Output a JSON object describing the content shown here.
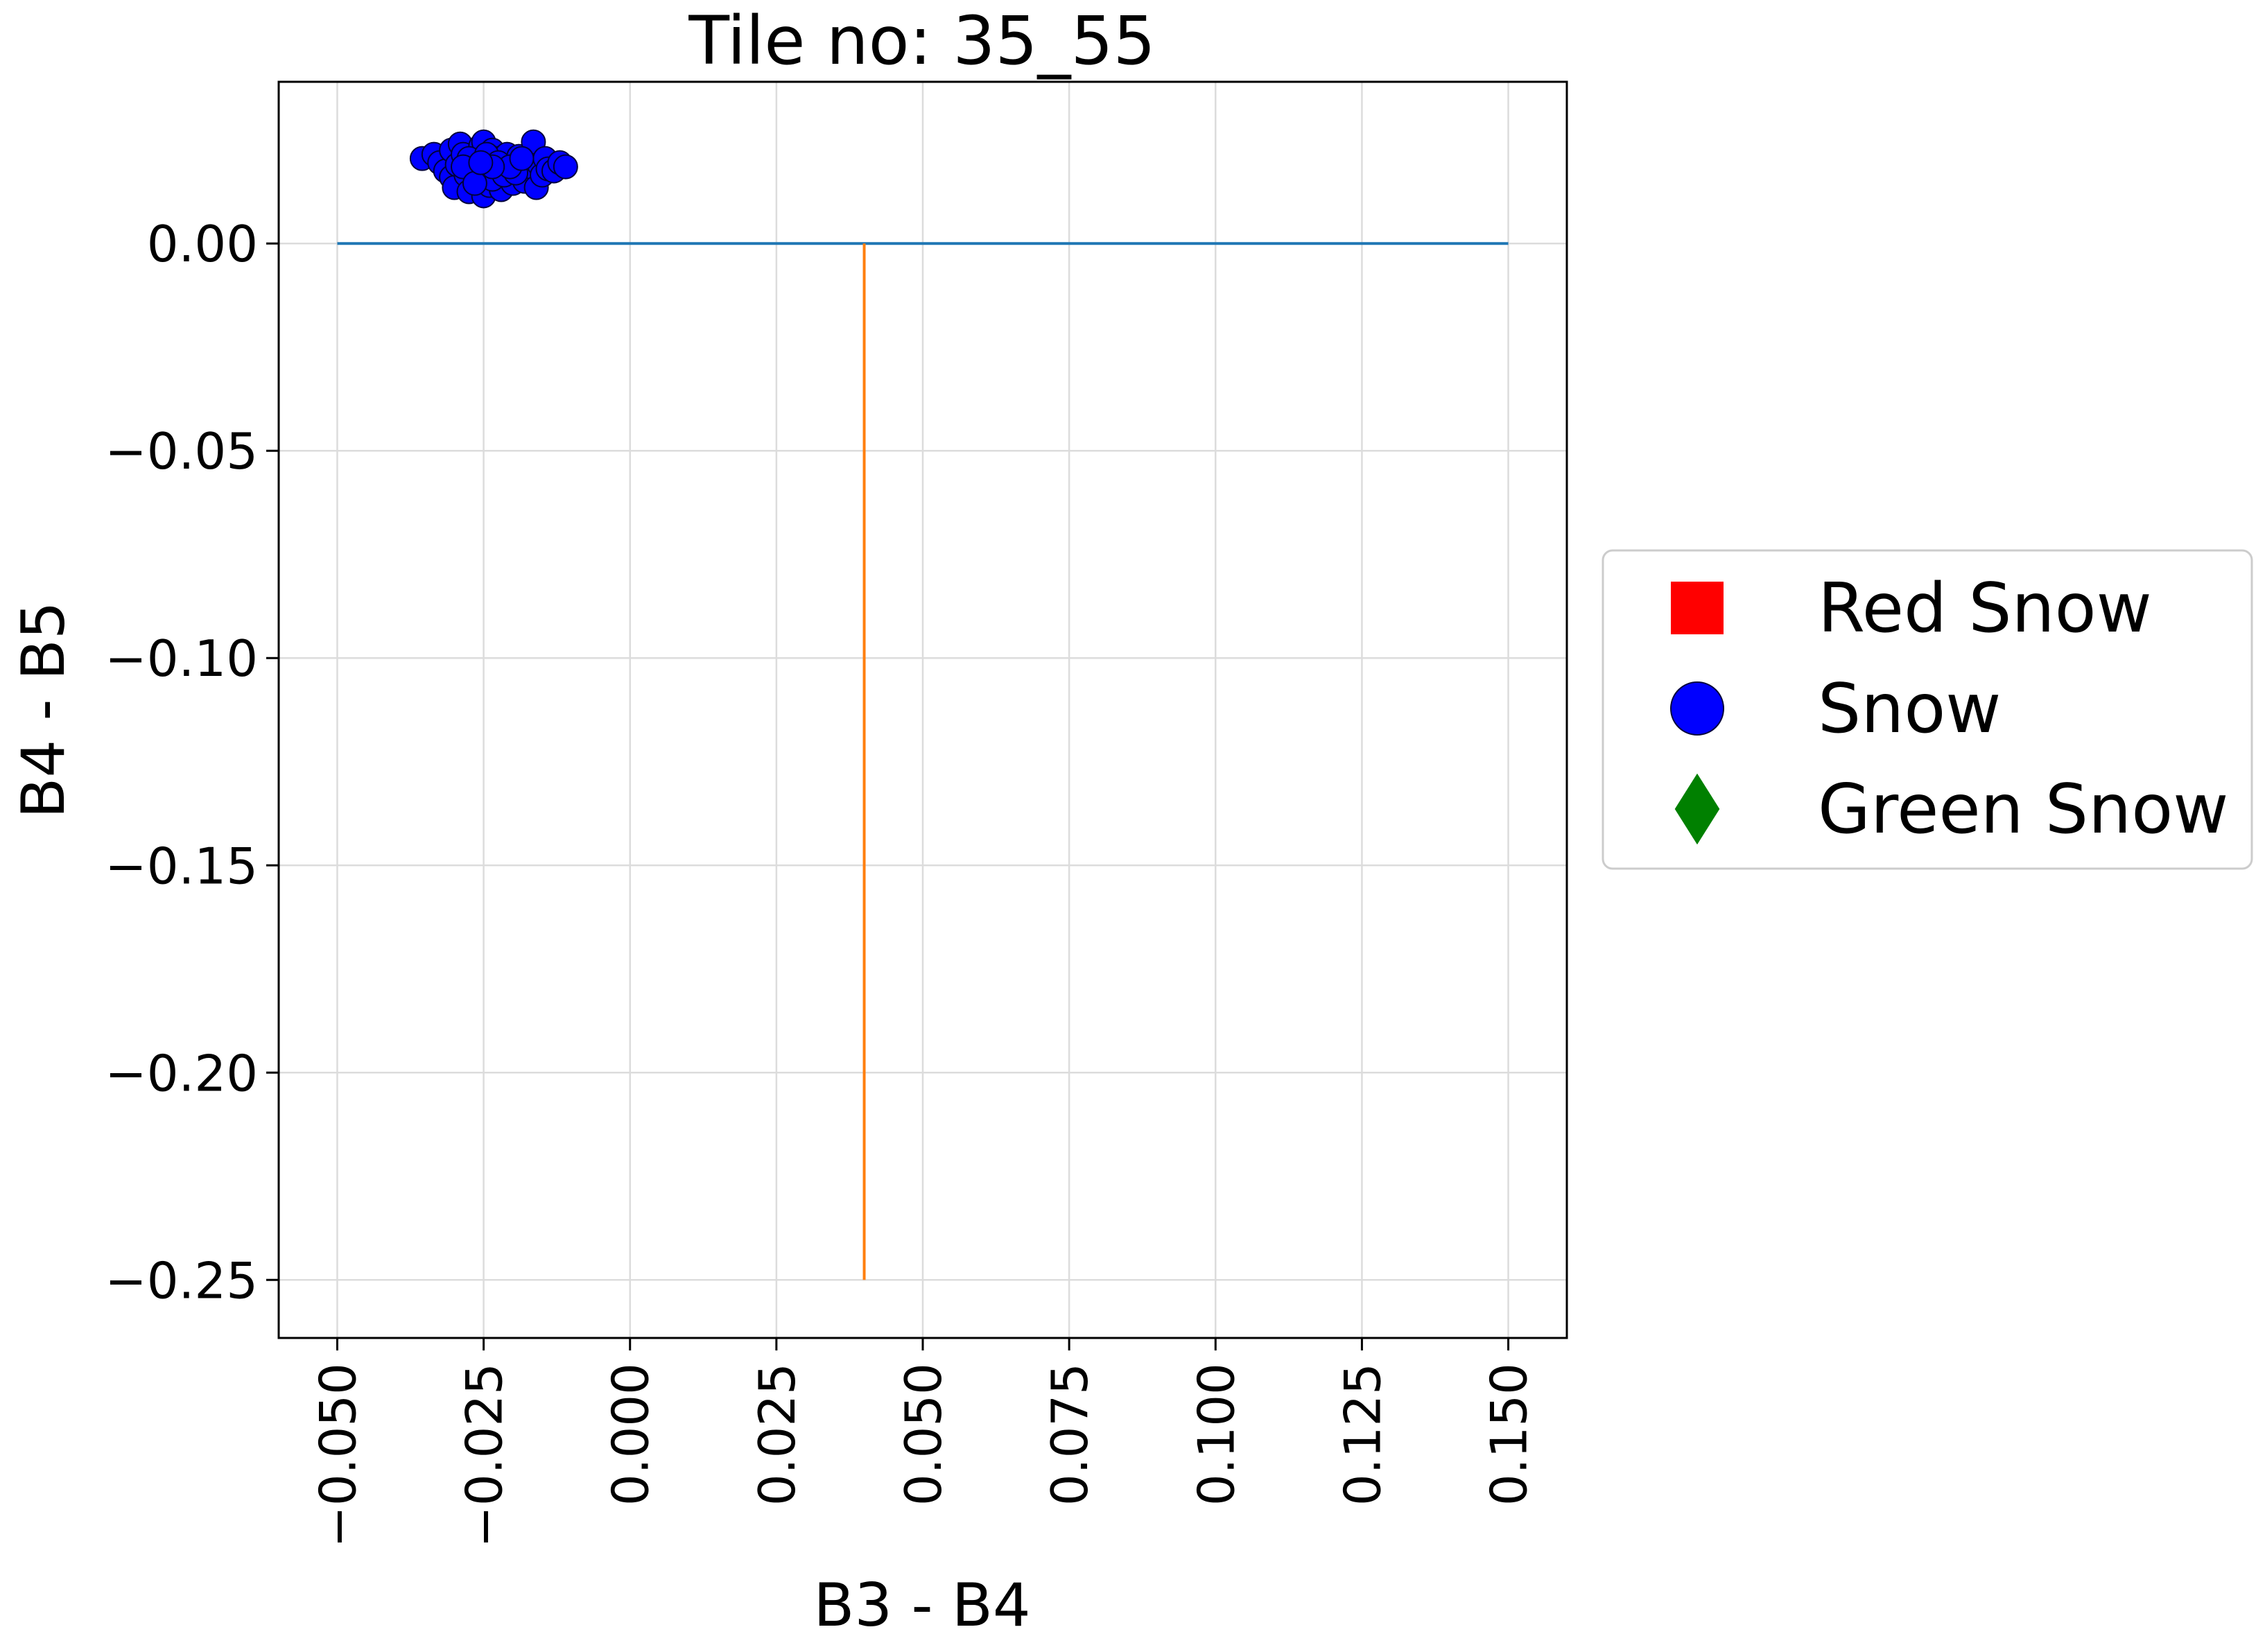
{
  "chart_data": {
    "type": "scatter",
    "title": "Tile no: 35_55",
    "xlabel": "B3 - B4",
    "ylabel": "B4 - B5",
    "xlim": [
      -0.06,
      0.16
    ],
    "ylim": [
      -0.264,
      0.039
    ],
    "x_ticks": [
      -0.05,
      -0.025,
      0.0,
      0.025,
      0.05,
      0.075,
      0.1,
      0.125,
      0.15
    ],
    "x_tick_labels": [
      "−0.050",
      "−0.025",
      "0.000",
      "0.025",
      "0.050",
      "0.075",
      "0.100",
      "0.125",
      "0.150"
    ],
    "y_ticks": [
      0.0,
      -0.05,
      -0.1,
      -0.15,
      -0.2,
      -0.25
    ],
    "y_tick_labels": [
      "0.00",
      "−0.05",
      "−0.10",
      "−0.15",
      "−0.20",
      "−0.25"
    ],
    "grid": true,
    "legend_position": "outside-right",
    "lines": [
      {
        "color": "#1f77b4",
        "x": [
          -0.05,
          0.15
        ],
        "y": [
          0.0,
          0.0
        ]
      },
      {
        "color": "#ff7f0e",
        "x": [
          0.04,
          0.04
        ],
        "y": [
          0.0,
          -0.25
        ]
      }
    ],
    "series": [
      {
        "name": "Red Snow",
        "marker": "square",
        "color": "#ff0000",
        "points": []
      },
      {
        "name": "Snow",
        "marker": "circle",
        "color": "#0000ff",
        "points": [
          [
            -0.0355,
            0.0205
          ],
          [
            -0.0335,
            0.0215
          ],
          [
            -0.0325,
            0.0195
          ],
          [
            -0.0315,
            0.0175
          ],
          [
            -0.0305,
            0.0225
          ],
          [
            -0.0305,
            0.016
          ],
          [
            -0.03,
            0.0135
          ],
          [
            -0.0295,
            0.019
          ],
          [
            -0.029,
            0.024
          ],
          [
            -0.0285,
            0.0215
          ],
          [
            -0.028,
            0.0165
          ],
          [
            -0.0275,
            0.0125
          ],
          [
            -0.027,
            0.0185
          ],
          [
            -0.0265,
            0.021
          ],
          [
            -0.026,
            0.0155
          ],
          [
            -0.0255,
            0.0235
          ],
          [
            -0.025,
            0.0245
          ],
          [
            -0.025,
            0.0115
          ],
          [
            -0.0245,
            0.019
          ],
          [
            -0.024,
            0.014
          ],
          [
            -0.0235,
            0.0225
          ],
          [
            -0.023,
            0.017
          ],
          [
            -0.0225,
            0.0205
          ],
          [
            -0.022,
            0.013
          ],
          [
            -0.0215,
            0.0185
          ],
          [
            -0.021,
            0.0215
          ],
          [
            -0.0205,
            0.016
          ],
          [
            -0.02,
            0.0145
          ],
          [
            -0.0195,
            0.0195
          ],
          [
            -0.019,
            0.021
          ],
          [
            -0.0185,
            0.0175
          ],
          [
            -0.018,
            0.015
          ],
          [
            -0.0175,
            0.0205
          ],
          [
            -0.017,
            0.0185
          ],
          [
            -0.0165,
            0.0245
          ],
          [
            -0.016,
            0.0135
          ],
          [
            -0.0155,
            0.019
          ],
          [
            -0.015,
            0.0165
          ],
          [
            -0.0145,
            0.0205
          ],
          [
            -0.014,
            0.018
          ],
          [
            -0.013,
            0.0175
          ],
          [
            -0.012,
            0.0195
          ],
          [
            -0.011,
            0.0185
          ],
          [
            -0.0275,
            0.0205
          ],
          [
            -0.0255,
            0.0175
          ],
          [
            -0.0235,
            0.0155
          ],
          [
            -0.0215,
            0.0165
          ],
          [
            -0.0195,
            0.017
          ],
          [
            -0.0285,
            0.0185
          ],
          [
            -0.0245,
            0.0215
          ],
          [
            -0.0225,
            0.0195
          ],
          [
            -0.0205,
            0.0185
          ],
          [
            -0.0265,
            0.0145
          ],
          [
            -0.0185,
            0.0205
          ],
          [
            -0.0235,
            0.0185
          ],
          [
            -0.0255,
            0.0195
          ]
        ]
      },
      {
        "name": "Green Snow",
        "marker": "diamond",
        "color": "#008000",
        "points": []
      }
    ]
  }
}
